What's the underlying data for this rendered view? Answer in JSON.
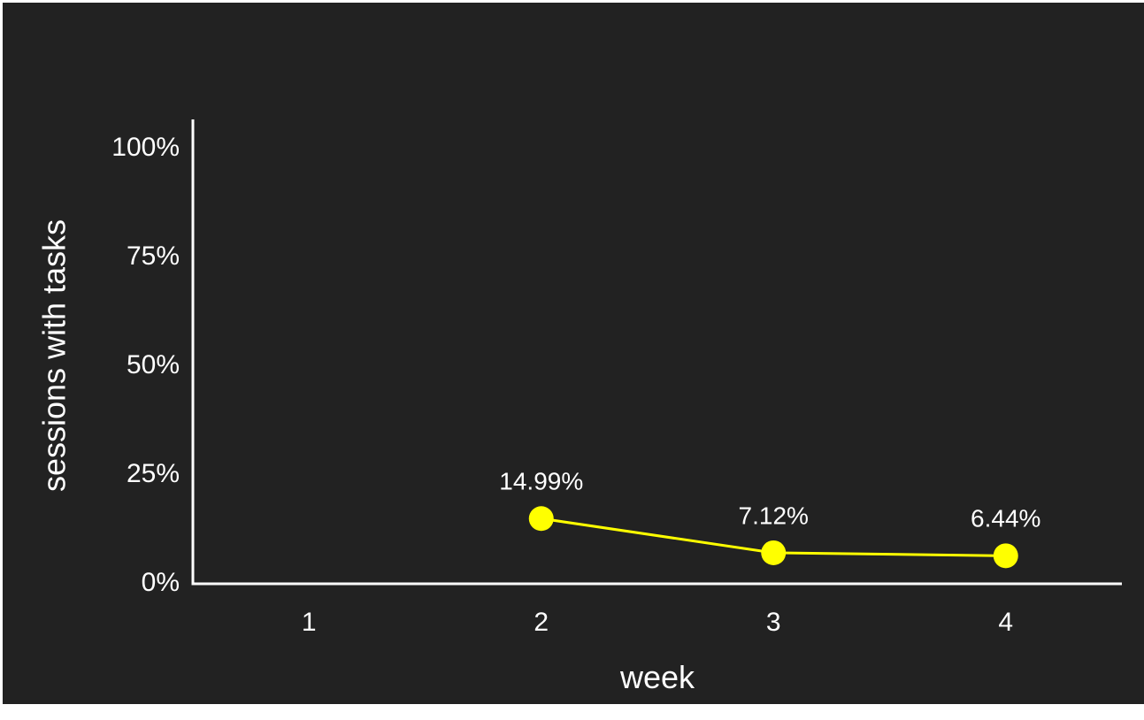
{
  "chart_data": {
    "type": "line",
    "xlabel": "week",
    "ylabel": "sessions with tasks",
    "categories": [
      "1",
      "2",
      "3",
      "4"
    ],
    "x": [
      1,
      2,
      3,
      4
    ],
    "series": [
      {
        "values": [
          null,
          14.99,
          7.12,
          6.44
        ],
        "labels": [
          "",
          "14.99%",
          "7.12%",
          "6.44%"
        ],
        "color": "#ffff00"
      }
    ],
    "ylim": [
      0,
      100
    ],
    "yticks": [
      0,
      25,
      50,
      75,
      100
    ],
    "ytick_labels": [
      "0%",
      "25%",
      "50%",
      "75%",
      "100%"
    ],
    "grid": false,
    "background": "#222222",
    "axis_color": "#ffffff"
  }
}
